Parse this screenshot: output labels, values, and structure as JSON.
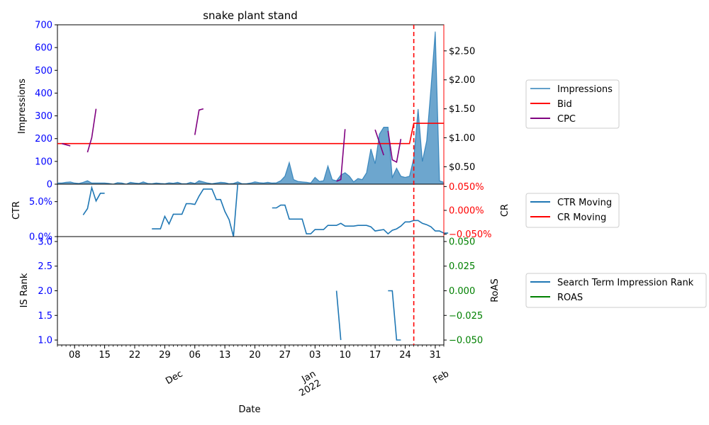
{
  "chart_data": {
    "type": "multi-panel",
    "title": "snake plant stand",
    "xlabel": "Date",
    "x_major_ticks": [
      {
        "date": "2021-11-08",
        "label": "08"
      },
      {
        "date": "2021-11-15",
        "label": "15"
      },
      {
        "date": "2021-11-22",
        "label": "22"
      },
      {
        "date": "2021-11-29",
        "label": "29"
      },
      {
        "date": "2021-12-06",
        "label": "06"
      },
      {
        "date": "2021-12-13",
        "label": "13"
      },
      {
        "date": "2021-12-20",
        "label": "20"
      },
      {
        "date": "2021-12-27",
        "label": "27"
      },
      {
        "date": "2022-01-03",
        "label": "03"
      },
      {
        "date": "2022-01-10",
        "label": "10"
      },
      {
        "date": "2022-01-17",
        "label": "17"
      },
      {
        "date": "2022-01-24",
        "label": "24"
      },
      {
        "date": "2022-01-31",
        "label": "31"
      }
    ],
    "x_month_labels": [
      {
        "date": "2021-12-01",
        "label": "Dec"
      },
      {
        "date": "2022-01-01",
        "label": "Jan\n2022"
      },
      {
        "date": "2022-02-01",
        "label": "Feb"
      }
    ],
    "x_range": [
      "2021-11-04",
      "2022-02-02"
    ],
    "marker_line_date": "2022-01-26",
    "colors": {
      "impressions": "#1f77b4",
      "bid": "#ff0000",
      "cpc": "#800080",
      "ctr": "#1f77b4",
      "cr": "#ff0000",
      "rank": "#1f77b4",
      "roas": "#008000",
      "marker": "#ff0000",
      "left_tick": "#0000ff",
      "cr_tick": "#ff0000",
      "roas_tick": "#008000"
    },
    "panels": {
      "top": {
        "ylabel": "Impressions",
        "ylim": [
          0,
          700
        ],
        "yticks": [
          0,
          100,
          200,
          300,
          400,
          500,
          600,
          700
        ],
        "right_ylim": [
          0.2,
          2.95
        ],
        "right_yticks": [
          {
            "v": 0.5,
            "label": "$0.50"
          },
          {
            "v": 1.0,
            "label": "$1.00"
          },
          {
            "v": 1.5,
            "label": "$1.50"
          },
          {
            "v": 2.0,
            "label": "$2.00"
          },
          {
            "v": 2.5,
            "label": "$2.50"
          }
        ],
        "legend": [
          "Impressions",
          "Bid",
          "CPC"
        ],
        "impressions": [
          [
            "2021-11-04",
            5
          ],
          [
            "2021-11-05",
            5
          ],
          [
            "2021-11-06",
            8
          ],
          [
            "2021-11-07",
            10
          ],
          [
            "2021-11-08",
            5
          ],
          [
            "2021-11-09",
            3
          ],
          [
            "2021-11-10",
            8
          ],
          [
            "2021-11-11",
            15
          ],
          [
            "2021-11-12",
            5
          ],
          [
            "2021-11-13",
            5
          ],
          [
            "2021-11-14",
            5
          ],
          [
            "2021-11-15",
            5
          ],
          [
            "2021-11-16",
            3
          ],
          [
            "2021-11-17",
            0
          ],
          [
            "2021-11-18",
            7
          ],
          [
            "2021-11-19",
            5
          ],
          [
            "2021-11-20",
            0
          ],
          [
            "2021-11-21",
            8
          ],
          [
            "2021-11-22",
            5
          ],
          [
            "2021-11-23",
            3
          ],
          [
            "2021-11-24",
            10
          ],
          [
            "2021-11-25",
            3
          ],
          [
            "2021-11-26",
            2
          ],
          [
            "2021-11-27",
            5
          ],
          [
            "2021-11-28",
            3
          ],
          [
            "2021-11-29",
            2
          ],
          [
            "2021-11-30",
            6
          ],
          [
            "2021-12-01",
            4
          ],
          [
            "2021-12-02",
            8
          ],
          [
            "2021-12-03",
            2
          ],
          [
            "2021-12-04",
            2
          ],
          [
            "2021-12-05",
            8
          ],
          [
            "2021-12-06",
            3
          ],
          [
            "2021-12-07",
            15
          ],
          [
            "2021-12-08",
            10
          ],
          [
            "2021-12-09",
            5
          ],
          [
            "2021-12-10",
            2
          ],
          [
            "2021-12-11",
            5
          ],
          [
            "2021-12-12",
            8
          ],
          [
            "2021-12-13",
            7
          ],
          [
            "2021-12-14",
            2
          ],
          [
            "2021-12-15",
            3
          ],
          [
            "2021-12-16",
            10
          ],
          [
            "2021-12-17",
            2
          ],
          [
            "2021-12-18",
            2
          ],
          [
            "2021-12-19",
            5
          ],
          [
            "2021-12-20",
            10
          ],
          [
            "2021-12-21",
            7
          ],
          [
            "2021-12-22",
            5
          ],
          [
            "2021-12-23",
            8
          ],
          [
            "2021-12-24",
            5
          ],
          [
            "2021-12-25",
            6
          ],
          [
            "2021-12-26",
            15
          ],
          [
            "2021-12-27",
            35
          ],
          [
            "2021-12-28",
            95
          ],
          [
            "2021-12-29",
            20
          ],
          [
            "2021-12-30",
            12
          ],
          [
            "2021-12-31",
            10
          ],
          [
            "2022-01-01",
            8
          ],
          [
            "2022-01-02",
            5
          ],
          [
            "2022-01-03",
            30
          ],
          [
            "2022-01-04",
            12
          ],
          [
            "2022-01-05",
            15
          ],
          [
            "2022-01-06",
            80
          ],
          [
            "2022-01-07",
            20
          ],
          [
            "2022-01-08",
            15
          ],
          [
            "2022-01-09",
            40
          ],
          [
            "2022-01-10",
            50
          ],
          [
            "2022-01-11",
            35
          ],
          [
            "2022-01-12",
            10
          ],
          [
            "2022-01-13",
            25
          ],
          [
            "2022-01-14",
            20
          ],
          [
            "2022-01-15",
            50
          ],
          [
            "2022-01-16",
            155
          ],
          [
            "2022-01-17",
            90
          ],
          [
            "2022-01-18",
            220
          ],
          [
            "2022-01-19",
            250
          ],
          [
            "2022-01-20",
            250
          ],
          [
            "2022-01-21",
            30
          ],
          [
            "2022-01-22",
            70
          ],
          [
            "2022-01-23",
            35
          ],
          [
            "2022-01-24",
            30
          ],
          [
            "2022-01-25",
            35
          ],
          [
            "2022-01-26",
            115
          ],
          [
            "2022-01-27",
            330
          ],
          [
            "2022-01-28",
            100
          ],
          [
            "2022-01-29",
            190
          ],
          [
            "2022-01-30",
            420
          ],
          [
            "2022-01-31",
            670
          ],
          [
            "2022-02-01",
            15
          ],
          [
            "2022-02-02",
            8
          ]
        ],
        "bid": [
          [
            "2021-11-04",
            0.9
          ],
          [
            "2022-01-25",
            0.9
          ],
          [
            "2022-01-26",
            1.25
          ],
          [
            "2022-02-02",
            1.25
          ]
        ],
        "cpc_segments": [
          [
            [
              "2021-11-05",
              0.9
            ],
            [
              "2021-11-07",
              0.86
            ]
          ],
          [
            [
              "2021-11-11",
              0.75
            ],
            [
              "2021-11-12",
              1.0
            ],
            [
              "2021-11-13",
              1.5
            ]
          ],
          [
            [
              "2021-12-06",
              1.05
            ],
            [
              "2021-12-07",
              1.48
            ],
            [
              "2021-12-08",
              1.5
            ]
          ],
          [
            [
              "2022-01-08",
              0.25
            ],
            [
              "2022-01-09",
              0.28
            ],
            [
              "2022-01-10",
              1.15
            ]
          ],
          [
            [
              "2022-01-17",
              1.14
            ],
            [
              "2022-01-19",
              0.7
            ]
          ],
          [
            [
              "2022-01-20",
              1.12
            ],
            [
              "2022-01-21",
              0.62
            ],
            [
              "2022-01-22",
              0.58
            ],
            [
              "2022-01-23",
              0.98
            ]
          ]
        ]
      },
      "middle": {
        "ylabel": "CTR",
        "ylim": [
          0,
          0.075
        ],
        "yticks": [
          {
            "v": 0,
            "label": "0.0%"
          },
          {
            "v": 0.05,
            "label": "5.0%"
          }
        ],
        "right_ylabel": "CR",
        "right_ylim": [
          -0.055,
          0.055
        ],
        "right_yticks": [
          {
            "v": -0.05,
            "label": "−0.050%"
          },
          {
            "v": 0,
            "label": "0.000%"
          },
          {
            "v": 0.05,
            "label": "0.050%"
          }
        ],
        "legend": [
          "CTR Moving",
          "CR Moving"
        ],
        "ctr_segments": [
          [
            [
              "2021-11-10",
              0.031
            ],
            [
              "2021-11-11",
              0.04
            ],
            [
              "2021-11-12",
              0.07
            ],
            [
              "2021-11-13",
              0.051
            ],
            [
              "2021-11-14",
              0.062
            ],
            [
              "2021-11-15",
              0.062
            ]
          ],
          [
            [
              "2021-11-26",
              0.011
            ],
            [
              "2021-11-27",
              0.011
            ],
            [
              "2021-11-28",
              0.011
            ],
            [
              "2021-11-29",
              0.029
            ],
            [
              "2021-11-30",
              0.018
            ],
            [
              "2021-12-01",
              0.032
            ],
            [
              "2021-12-02",
              0.032
            ],
            [
              "2021-12-03",
              0.032
            ],
            [
              "2021-12-04",
              0.047
            ],
            [
              "2021-12-05",
              0.047
            ],
            [
              "2021-12-06",
              0.046
            ],
            [
              "2021-12-07",
              0.058
            ],
            [
              "2021-12-08",
              0.068
            ],
            [
              "2021-12-09",
              0.068
            ],
            [
              "2021-12-10",
              0.068
            ],
            [
              "2021-12-11",
              0.053
            ],
            [
              "2021-12-12",
              0.053
            ],
            [
              "2021-12-13",
              0.036
            ],
            [
              "2021-12-14",
              0.024
            ],
            [
              "2021-12-15",
              0.0
            ],
            [
              "2021-12-16",
              0.075
            ]
          ],
          [
            [
              "2021-12-24",
              0.041
            ],
            [
              "2021-12-25",
              0.041
            ],
            [
              "2021-12-26",
              0.045
            ],
            [
              "2021-12-27",
              0.045
            ],
            [
              "2021-12-28",
              0.025
            ],
            [
              "2021-12-29",
              0.025
            ],
            [
              "2021-12-30",
              0.025
            ],
            [
              "2021-12-31",
              0.025
            ],
            [
              "2022-01-01",
              0.004
            ],
            [
              "2022-01-02",
              0.004
            ],
            [
              "2022-01-03",
              0.01
            ],
            [
              "2022-01-04",
              0.01
            ],
            [
              "2022-01-05",
              0.01
            ],
            [
              "2022-01-06",
              0.016
            ],
            [
              "2022-01-07",
              0.016
            ],
            [
              "2022-01-08",
              0.016
            ],
            [
              "2022-01-09",
              0.019
            ],
            [
              "2022-01-10",
              0.015
            ],
            [
              "2022-01-11",
              0.015
            ],
            [
              "2022-01-12",
              0.015
            ],
            [
              "2022-01-13",
              0.016
            ],
            [
              "2022-01-14",
              0.016
            ],
            [
              "2022-01-15",
              0.016
            ],
            [
              "2022-01-16",
              0.014
            ],
            [
              "2022-01-17",
              0.008
            ],
            [
              "2022-01-18",
              0.009
            ],
            [
              "2022-01-19",
              0.01
            ],
            [
              "2022-01-20",
              0.004
            ],
            [
              "2022-01-21",
              0.009
            ],
            [
              "2022-01-22",
              0.011
            ],
            [
              "2022-01-23",
              0.015
            ],
            [
              "2022-01-24",
              0.021
            ],
            [
              "2022-01-25",
              0.021
            ],
            [
              "2022-01-26",
              0.023
            ],
            [
              "2022-01-27",
              0.023
            ],
            [
              "2022-01-28",
              0.019
            ],
            [
              "2022-01-29",
              0.017
            ],
            [
              "2022-01-30",
              0.014
            ],
            [
              "2022-01-31",
              0.008
            ],
            [
              "2022-02-01",
              0.008
            ],
            [
              "2022-02-02",
              0.005
            ],
            [
              "2022-02-03",
              0.005
            ]
          ]
        ]
      },
      "bottom": {
        "ylabel": "IS Rank",
        "ylim": [
          0.9,
          3.1
        ],
        "yticks": [
          {
            "v": 1.0,
            "label": "1.0"
          },
          {
            "v": 1.5,
            "label": "1.5"
          },
          {
            "v": 2.0,
            "label": "2.0"
          },
          {
            "v": 2.5,
            "label": "2.5"
          },
          {
            "v": 3.0,
            "label": "3.0"
          }
        ],
        "right_ylabel": "RoAS",
        "right_ylim": [
          -0.055,
          0.055
        ],
        "right_yticks": [
          {
            "v": -0.05,
            "label": "−0.050"
          },
          {
            "v": -0.025,
            "label": "−0.025"
          },
          {
            "v": 0,
            "label": "0.000"
          },
          {
            "v": 0.025,
            "label": "0.025"
          },
          {
            "v": 0.05,
            "label": "0.050"
          }
        ],
        "legend": [
          "Search Term Impression Rank",
          "ROAS"
        ],
        "rank_segments": [
          [
            [
              "2022-01-08",
              2.0
            ],
            [
              "2022-01-09",
              1.0
            ]
          ],
          [
            [
              "2022-01-20",
              2.0
            ],
            [
              "2022-01-21",
              2.0
            ],
            [
              "2022-01-22",
              1.0
            ],
            [
              "2022-01-23",
              1.0
            ]
          ]
        ]
      }
    }
  }
}
